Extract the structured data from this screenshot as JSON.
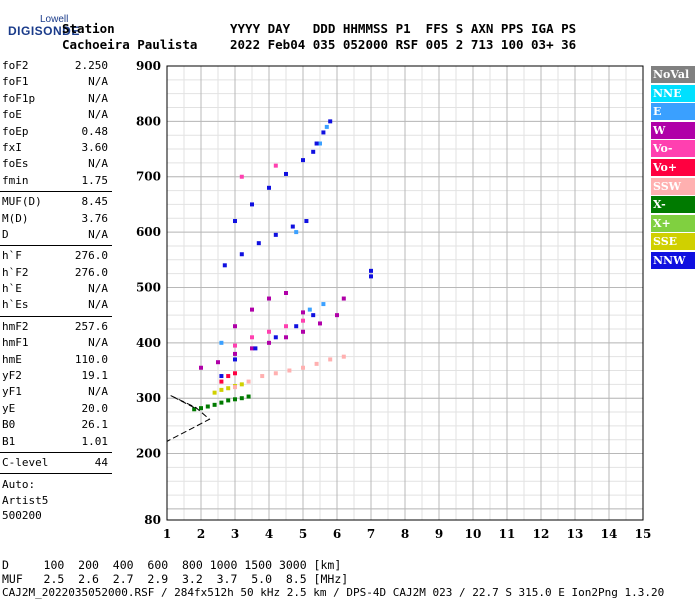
{
  "logo": {
    "lowell": "Lowell",
    "digisonde": "DIGISONDE"
  },
  "header": {
    "line1_left": "Station",
    "line2_left": "Cachoeira Paulista",
    "line1_right": "YYYY DAY   DDD HHMMSS P1  FFS S AXN PPS IGA PS",
    "line2_right": "2022 Feb04 035 052000 RSF 005 2 713 100 03+ 36"
  },
  "params": [
    {
      "name": "foF2",
      "value": "2.250"
    },
    {
      "name": "foF1",
      "value": "N/A"
    },
    {
      "name": "foF1p",
      "value": "N/A"
    },
    {
      "name": "foE",
      "value": "N/A"
    },
    {
      "name": "foEp",
      "value": "0.48"
    },
    {
      "name": "fxI",
      "value": "3.60"
    },
    {
      "name": "foEs",
      "value": "N/A"
    },
    {
      "name": "fmin",
      "value": "1.75"
    },
    {
      "sep": true
    },
    {
      "name": "MUF(D)",
      "value": "8.45"
    },
    {
      "name": "M(D)",
      "value": "3.76"
    },
    {
      "name": "D",
      "value": "N/A"
    },
    {
      "sep": true
    },
    {
      "name": "h`F",
      "value": "276.0"
    },
    {
      "name": "h`F2",
      "value": "276.0"
    },
    {
      "name": "h`E",
      "value": "N/A"
    },
    {
      "name": "h`Es",
      "value": "N/A"
    },
    {
      "sep": true
    },
    {
      "name": "hmF2",
      "value": "257.6"
    },
    {
      "name": "hmF1",
      "value": "N/A"
    },
    {
      "name": "hmE",
      "value": "110.0"
    },
    {
      "name": "yF2",
      "value": "19.1"
    },
    {
      "name": "yF1",
      "value": "N/A"
    },
    {
      "name": "yE",
      "value": "20.0"
    },
    {
      "name": "B0",
      "value": "26.1"
    },
    {
      "name": "B1",
      "value": "1.01"
    },
    {
      "sep": true
    },
    {
      "name": "C-level",
      "value": "44"
    },
    {
      "sep": true
    }
  ],
  "auto": [
    "Auto:",
    "Artist5",
    "500200"
  ],
  "legend": [
    {
      "label": "NoVal",
      "bg": "#808080",
      "fg": "#ffffff"
    },
    {
      "label": "NNE",
      "bg": "#00e0ff",
      "fg": "#ffffff"
    },
    {
      "label": "E",
      "bg": "#3aa0ff",
      "fg": "#ffffff"
    },
    {
      "label": "W",
      "bg": "#b000a8",
      "fg": "#ffffff"
    },
    {
      "label": "Vo-",
      "bg": "#ff40b0",
      "fg": "#ffffff"
    },
    {
      "label": "Vo+",
      "bg": "#ff0040",
      "fg": "#ffffff"
    },
    {
      "label": "SSW",
      "bg": "#ffb0b0",
      "fg": "#ffffff"
    },
    {
      "label": "X-",
      "bg": "#007a00",
      "fg": "#ffffff"
    },
    {
      "label": "X+",
      "bg": "#80d040",
      "fg": "#ffffff"
    },
    {
      "label": "SSE",
      "bg": "#d0d000",
      "fg": "#ffffff"
    },
    {
      "label": "NNW",
      "bg": "#1010e0",
      "fg": "#ffffff"
    }
  ],
  "bottom": {
    "line1": "D     100  200  400  600  800 1000 1500 3000 [km]",
    "line2": "MUF   2.5  2.6  2.7  2.9  3.2  3.7  5.0  8.5 [MHz]",
    "footer": "CAJ2M_2022035052000.RSF / 284fx512h 50 kHz 2.5 km / DPS-4D CAJ2M 023 / 22.7 S 315.0 E Ion2Png 1.3.20"
  },
  "chart_data": {
    "type": "scatter",
    "title": "",
    "xlabel": "",
    "ylabel": "",
    "xlim": [
      1,
      15
    ],
    "ylim": [
      80,
      900
    ],
    "x_ticks": [
      "1",
      "2",
      "3",
      "4",
      "5",
      "6",
      "7",
      "8",
      "9",
      "10",
      "11",
      "12",
      "13",
      "14",
      "15"
    ],
    "y_ticks": [
      "80",
      "200",
      "300",
      "400",
      "500",
      "600",
      "700",
      "800",
      "900"
    ],
    "series": [
      {
        "color": "#007a00",
        "points": [
          [
            1.8,
            280
          ],
          [
            2.0,
            282
          ],
          [
            2.2,
            285
          ],
          [
            2.4,
            288
          ],
          [
            2.6,
            292
          ],
          [
            2.8,
            296
          ],
          [
            3.0,
            298
          ],
          [
            3.2,
            300
          ],
          [
            3.4,
            303
          ]
        ]
      },
      {
        "color": "#d0d000",
        "points": [
          [
            2.4,
            310
          ],
          [
            2.6,
            315
          ],
          [
            2.8,
            318
          ],
          [
            3.0,
            322
          ],
          [
            3.2,
            325
          ]
        ]
      },
      {
        "color": "#ffb0b0",
        "points": [
          [
            3.0,
            320
          ],
          [
            3.4,
            330
          ],
          [
            3.8,
            340
          ],
          [
            4.2,
            345
          ],
          [
            4.6,
            350
          ],
          [
            5.0,
            355
          ],
          [
            5.4,
            362
          ],
          [
            5.8,
            370
          ],
          [
            6.2,
            375
          ]
        ]
      },
      {
        "color": "#ff0040",
        "points": [
          [
            2.6,
            330
          ],
          [
            2.8,
            340
          ],
          [
            3.0,
            345
          ]
        ]
      },
      {
        "color": "#b000a8",
        "points": [
          [
            2.0,
            355
          ],
          [
            2.5,
            365
          ],
          [
            3.0,
            380
          ],
          [
            3.5,
            390
          ],
          [
            4.0,
            400
          ],
          [
            4.5,
            410
          ],
          [
            5.0,
            420
          ],
          [
            5.5,
            435
          ],
          [
            6.0,
            450
          ],
          [
            3.0,
            430
          ],
          [
            3.5,
            460
          ],
          [
            4.0,
            480
          ],
          [
            4.5,
            490
          ],
          [
            5.0,
            455
          ],
          [
            6.2,
            480
          ]
        ]
      },
      {
        "color": "#ff40b0",
        "points": [
          [
            3.0,
            395
          ],
          [
            3.5,
            410
          ],
          [
            4.0,
            420
          ],
          [
            4.5,
            430
          ],
          [
            5.0,
            440
          ],
          [
            4.2,
            720
          ],
          [
            3.2,
            700
          ]
        ]
      },
      {
        "color": "#3aa0ff",
        "points": [
          [
            2.6,
            400
          ],
          [
            5.2,
            460
          ],
          [
            5.6,
            470
          ],
          [
            5.7,
            790
          ],
          [
            5.5,
            760
          ],
          [
            4.8,
            600
          ]
        ]
      },
      {
        "color": "#1010e0",
        "points": [
          [
            2.6,
            340
          ],
          [
            3.0,
            370
          ],
          [
            3.6,
            390
          ],
          [
            4.2,
            410
          ],
          [
            4.8,
            430
          ],
          [
            5.3,
            450
          ],
          [
            2.7,
            540
          ],
          [
            3.2,
            560
          ],
          [
            3.7,
            580
          ],
          [
            4.2,
            595
          ],
          [
            4.7,
            610
          ],
          [
            5.1,
            620
          ],
          [
            3.0,
            620
          ],
          [
            3.5,
            650
          ],
          [
            4.0,
            680
          ],
          [
            4.5,
            705
          ],
          [
            5.0,
            730
          ],
          [
            5.3,
            745
          ],
          [
            5.4,
            760
          ],
          [
            5.6,
            780
          ],
          [
            5.8,
            800
          ],
          [
            7.0,
            520
          ],
          [
            7.0,
            530
          ]
        ]
      }
    ]
  }
}
